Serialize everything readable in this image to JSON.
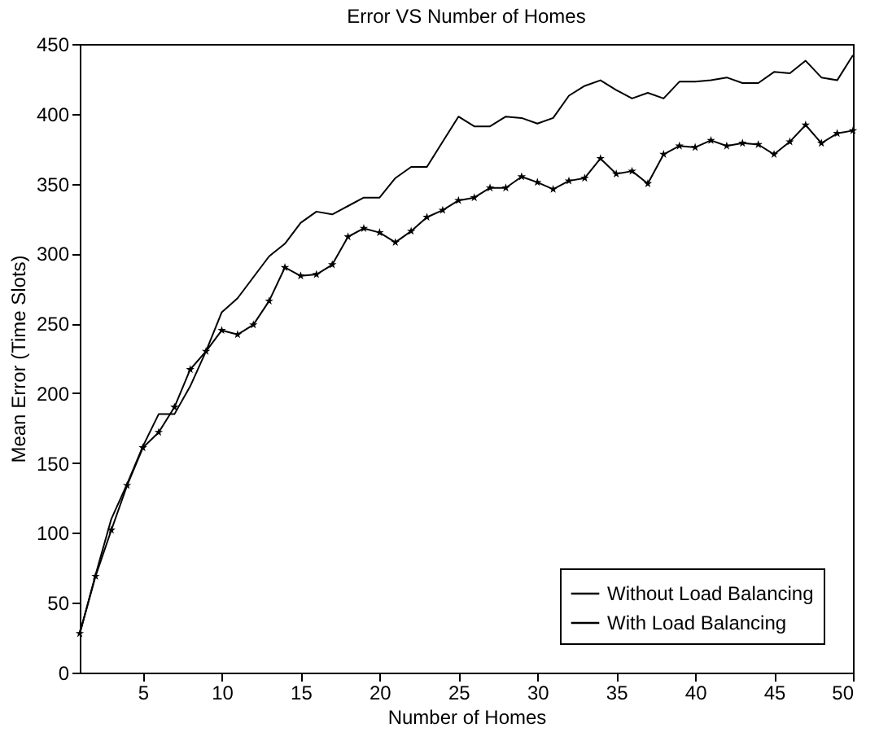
{
  "chart_data": {
    "type": "line",
    "title": "Error VS Number of Homes",
    "xlabel": "Number of Homes",
    "ylabel": "Mean Error (Time Slots)",
    "x": [
      1,
      2,
      3,
      4,
      5,
      6,
      7,
      8,
      9,
      10,
      11,
      12,
      13,
      14,
      15,
      16,
      17,
      18,
      19,
      20,
      21,
      22,
      23,
      24,
      25,
      26,
      27,
      28,
      29,
      30,
      31,
      32,
      33,
      34,
      35,
      36,
      37,
      38,
      39,
      40,
      41,
      42,
      43,
      44,
      45,
      46,
      47,
      48,
      49,
      50
    ],
    "series": [
      {
        "name": "Without Load Balancing",
        "color": "#000000",
        "marker": "star",
        "values": [
          28,
          69,
          102,
          134,
          161,
          172,
          190,
          217,
          230,
          245,
          242,
          249,
          266,
          290,
          284,
          285,
          292,
          312,
          318,
          315,
          308,
          316,
          326,
          331,
          338,
          340,
          347,
          347,
          355,
          351,
          346,
          352,
          354,
          368,
          357,
          359,
          350,
          371,
          377,
          376,
          381,
          377,
          379,
          378,
          371,
          380,
          392,
          379,
          386,
          388
        ]
      },
      {
        "name": "With Load Balancing",
        "color": "#000000",
        "marker": "none",
        "values": [
          28,
          70,
          110,
          135,
          162,
          185,
          185,
          205,
          230,
          258,
          268,
          283,
          298,
          307,
          322,
          330,
          328,
          334,
          340,
          340,
          354,
          362,
          362,
          380,
          398,
          391,
          391,
          398,
          397,
          393,
          397,
          413,
          420,
          424,
          417,
          411,
          415,
          411,
          423,
          423,
          424,
          426,
          422,
          422,
          430,
          429,
          438,
          426,
          424,
          442
        ]
      }
    ],
    "xlim": [
      1,
      50
    ],
    "xticks": [
      5,
      10,
      15,
      20,
      25,
      30,
      35,
      40,
      45,
      50
    ],
    "ylim": [
      0,
      450
    ],
    "yticks": [
      0,
      50,
      100,
      150,
      200,
      250,
      300,
      350,
      400,
      450
    ],
    "legend": "bottom right",
    "line_style": "solid"
  }
}
